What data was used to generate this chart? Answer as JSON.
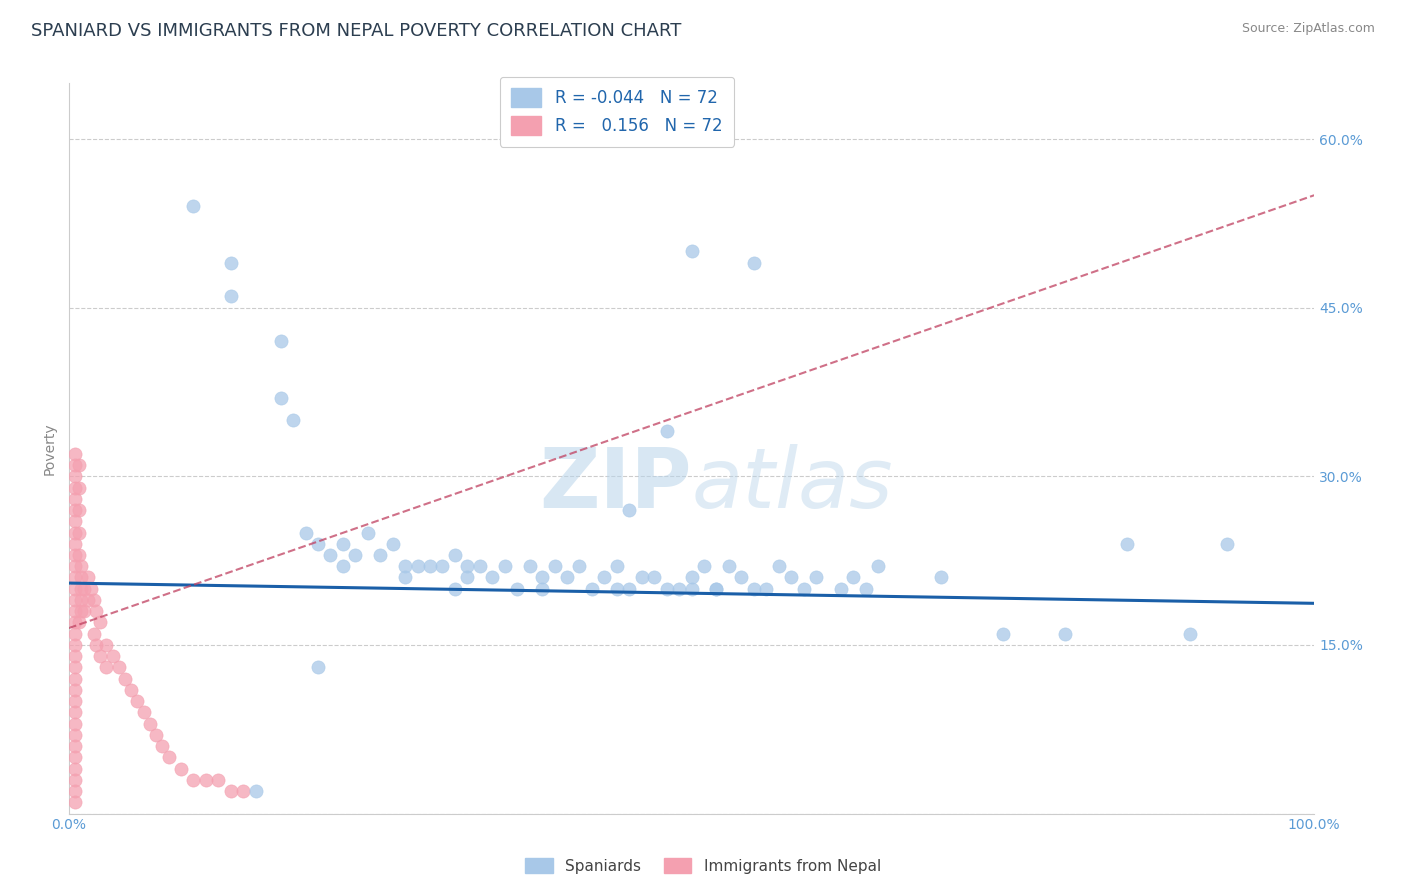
{
  "title": "SPANIARD VS IMMIGRANTS FROM NEPAL POVERTY CORRELATION CHART",
  "source": "Source: ZipAtlas.com",
  "ylabel": "Poverty",
  "watermark": "ZIPatlas",
  "xlim": [
    0.0,
    1.0
  ],
  "ylim": [
    0.0,
    0.65
  ],
  "xticks": [
    0.0,
    0.25,
    0.5,
    0.75,
    1.0
  ],
  "xticklabels": [
    "0.0%",
    "",
    "",
    "",
    "100.0%"
  ],
  "yticks_right": [
    0.15,
    0.3,
    0.45,
    0.6
  ],
  "yticklabels_right": [
    "15.0%",
    "30.0%",
    "45.0%",
    "60.0%"
  ],
  "legend_r_spaniards": "-0.044",
  "legend_n_spaniards": "72",
  "legend_r_nepal": "0.156",
  "legend_n_nepal": "72",
  "spaniards_color": "#a8c8e8",
  "nepal_color": "#f4a0b0",
  "spaniards_line_color": "#1a5fa8",
  "nepal_line_color": "#c04060",
  "spaniards_x": [
    0.1,
    0.13,
    0.13,
    0.17,
    0.17,
    0.18,
    0.19,
    0.2,
    0.21,
    0.22,
    0.22,
    0.23,
    0.24,
    0.25,
    0.26,
    0.27,
    0.27,
    0.28,
    0.29,
    0.3,
    0.31,
    0.31,
    0.32,
    0.32,
    0.33,
    0.34,
    0.35,
    0.36,
    0.37,
    0.38,
    0.38,
    0.39,
    0.4,
    0.41,
    0.42,
    0.43,
    0.44,
    0.44,
    0.45,
    0.46,
    0.47,
    0.48,
    0.49,
    0.5,
    0.5,
    0.51,
    0.52,
    0.52,
    0.53,
    0.54,
    0.55,
    0.56,
    0.57,
    0.58,
    0.59,
    0.6,
    0.62,
    0.63,
    0.64,
    0.65,
    0.45,
    0.48,
    0.5,
    0.55,
    0.7,
    0.75,
    0.8,
    0.85,
    0.9,
    0.93,
    0.2,
    0.15
  ],
  "spaniards_y": [
    0.54,
    0.49,
    0.46,
    0.42,
    0.37,
    0.35,
    0.25,
    0.24,
    0.23,
    0.22,
    0.24,
    0.23,
    0.25,
    0.23,
    0.24,
    0.22,
    0.21,
    0.22,
    0.22,
    0.22,
    0.23,
    0.2,
    0.22,
    0.21,
    0.22,
    0.21,
    0.22,
    0.2,
    0.22,
    0.21,
    0.2,
    0.22,
    0.21,
    0.22,
    0.2,
    0.21,
    0.22,
    0.2,
    0.2,
    0.21,
    0.21,
    0.2,
    0.2,
    0.2,
    0.21,
    0.22,
    0.2,
    0.2,
    0.22,
    0.21,
    0.2,
    0.2,
    0.22,
    0.21,
    0.2,
    0.21,
    0.2,
    0.21,
    0.2,
    0.22,
    0.27,
    0.34,
    0.5,
    0.49,
    0.21,
    0.16,
    0.16,
    0.24,
    0.16,
    0.24,
    0.13,
    0.02
  ],
  "nepal_x": [
    0.005,
    0.005,
    0.005,
    0.005,
    0.005,
    0.005,
    0.005,
    0.005,
    0.005,
    0.005,
    0.005,
    0.005,
    0.005,
    0.005,
    0.005,
    0.005,
    0.005,
    0.005,
    0.005,
    0.005,
    0.005,
    0.005,
    0.005,
    0.005,
    0.005,
    0.005,
    0.005,
    0.005,
    0.005,
    0.005,
    0.008,
    0.008,
    0.008,
    0.008,
    0.008,
    0.01,
    0.01,
    0.01,
    0.01,
    0.012,
    0.012,
    0.015,
    0.015,
    0.018,
    0.02,
    0.022,
    0.025,
    0.03,
    0.035,
    0.04,
    0.045,
    0.05,
    0.055,
    0.06,
    0.065,
    0.07,
    0.075,
    0.08,
    0.09,
    0.1,
    0.11,
    0.12,
    0.13,
    0.14,
    0.02,
    0.022,
    0.025,
    0.03,
    0.01,
    0.008,
    0.005,
    0.005
  ],
  "nepal_y": [
    0.2,
    0.19,
    0.18,
    0.17,
    0.16,
    0.15,
    0.14,
    0.13,
    0.12,
    0.11,
    0.1,
    0.09,
    0.08,
    0.07,
    0.06,
    0.05,
    0.04,
    0.03,
    0.02,
    0.01,
    0.21,
    0.22,
    0.23,
    0.24,
    0.25,
    0.26,
    0.27,
    0.28,
    0.29,
    0.3,
    0.31,
    0.29,
    0.27,
    0.25,
    0.23,
    0.21,
    0.2,
    0.19,
    0.18,
    0.2,
    0.18,
    0.21,
    0.19,
    0.2,
    0.19,
    0.18,
    0.17,
    0.15,
    0.14,
    0.13,
    0.12,
    0.11,
    0.1,
    0.09,
    0.08,
    0.07,
    0.06,
    0.05,
    0.04,
    0.03,
    0.03,
    0.03,
    0.02,
    0.02,
    0.16,
    0.15,
    0.14,
    0.13,
    0.22,
    0.17,
    0.32,
    0.31
  ],
  "title_fontsize": 13,
  "axis_label_fontsize": 10,
  "tick_fontsize": 10,
  "source_fontsize": 9,
  "sp_line_start_x": 0.0,
  "sp_line_start_y": 0.205,
  "sp_line_end_x": 1.0,
  "sp_line_end_y": 0.187,
  "np_line_start_x": 0.0,
  "np_line_start_y": 0.165,
  "np_line_end_x": 1.0,
  "np_line_end_y": 0.55
}
